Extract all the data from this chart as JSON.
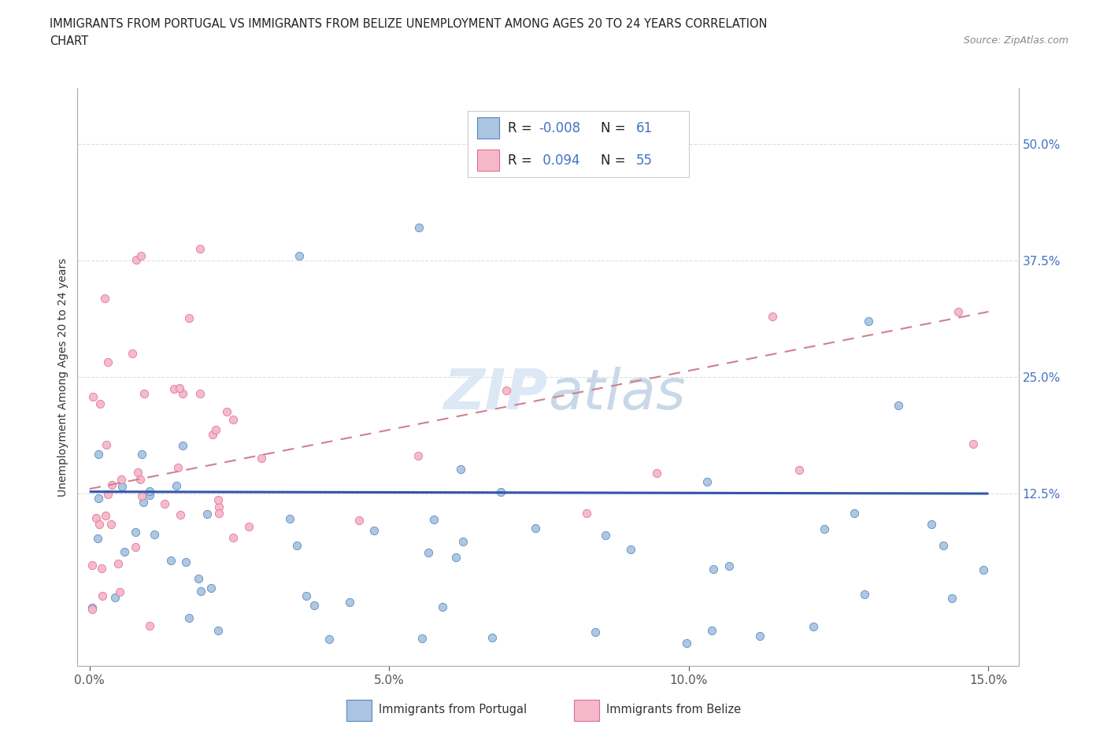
{
  "title_line1": "IMMIGRANTS FROM PORTUGAL VS IMMIGRANTS FROM BELIZE UNEMPLOYMENT AMONG AGES 20 TO 24 YEARS CORRELATION",
  "title_line2": "CHART",
  "source": "Source: ZipAtlas.com",
  "ylabel": "Unemployment Among Ages 20 to 24 years",
  "xlim": [
    -0.002,
    0.155
  ],
  "ylim": [
    -0.06,
    0.56
  ],
  "xticks": [
    0.0,
    0.05,
    0.1,
    0.15
  ],
  "xticklabels": [
    "0.0%",
    "5.0%",
    "10.0%",
    "15.0%"
  ],
  "yticks_right": [
    0.125,
    0.25,
    0.375,
    0.5
  ],
  "yticklabels_right": [
    "12.5%",
    "25.0%",
    "37.5%",
    "50.0%"
  ],
  "portugal_color": "#aac4e2",
  "portugal_edge": "#5588bb",
  "belize_color": "#f5b8ca",
  "belize_edge": "#e07090",
  "portugal_R": -0.008,
  "portugal_N": 61,
  "belize_R": 0.094,
  "belize_N": 55,
  "portugal_line_color": "#3355aa",
  "belize_line_color": "#d08090",
  "watermark_color": "#dde8f5",
  "legend_label_portugal": "Immigrants from Portugal",
  "legend_label_belize": "Immigrants from Belize",
  "R_color": "#4472c4",
  "title_color": "#222222",
  "source_color": "#888888",
  "tick_color": "#555555",
  "grid_color": "#dddddd",
  "ylabel_color": "#333333"
}
